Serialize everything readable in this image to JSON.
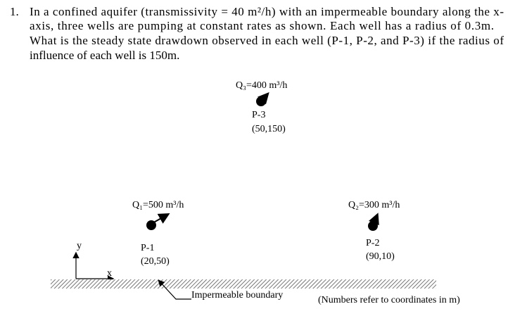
{
  "problem": {
    "number": "1.",
    "lines": [
      "In a confined aquifer (transmissivity = 40 m²/h) with an impermeable boundary along the x-",
      "axis, three wells are pumping at constant rates as shown. Each well has a radius of 0.3m.",
      "What is the steady state drawdown observed in each well (P-1, P-2, and P-3) if the radius of",
      "influence of each well is 150m."
    ]
  },
  "wells": [
    {
      "rate": "Q₁=500 m³/h",
      "name": "P-1",
      "coords": "(20,50)"
    },
    {
      "rate": "Q₂=300 m³/h",
      "name": "P-2",
      "coords": "(90,10)"
    },
    {
      "rate": "Q₃=400 m³/h",
      "name": "P-3",
      "coords": "(50,150)"
    }
  ],
  "axes": {
    "y": "y",
    "x": "x"
  },
  "boundary_label": "Impermeable boundary",
  "note": "(Numbers refer to coordinates in m)"
}
